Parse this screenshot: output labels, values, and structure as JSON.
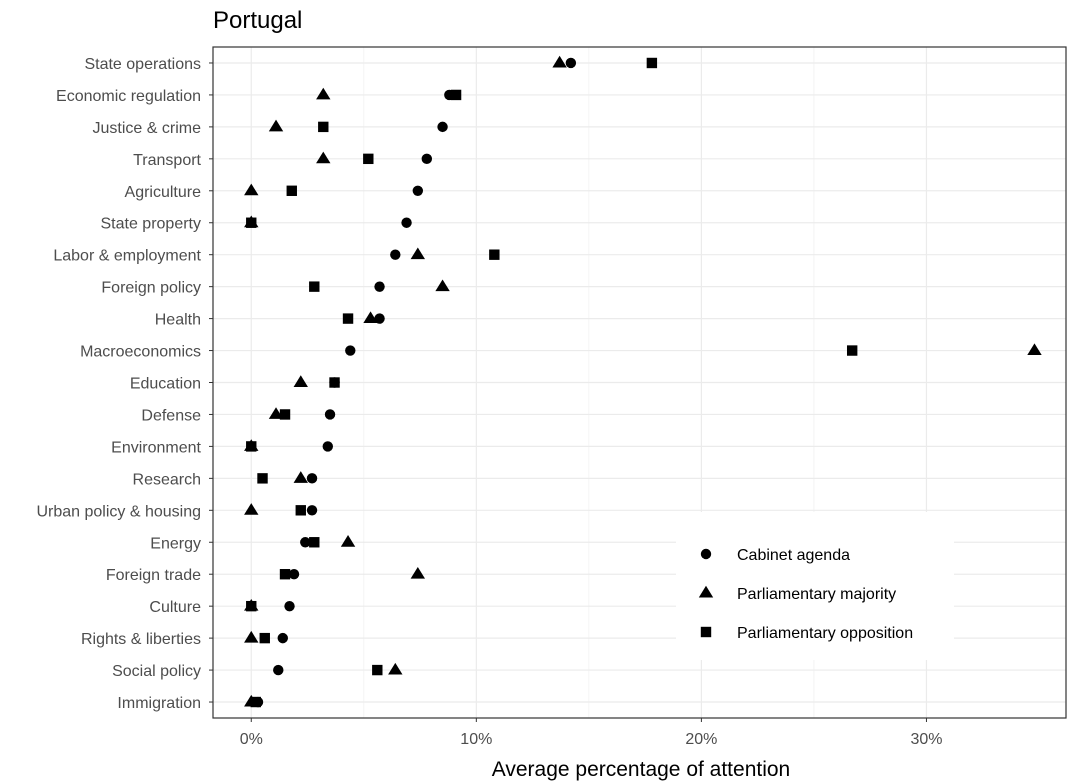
{
  "chart_data": {
    "type": "scatter",
    "title": "Portugal",
    "xlabel": "Average percentage of attention",
    "ylabel": "",
    "xlim": [
      -1.7,
      36.2
    ],
    "x_ticks": [
      0,
      10,
      20,
      30
    ],
    "x_tick_labels": [
      "0%",
      "10%",
      "20%",
      "30%"
    ],
    "grid": true,
    "legend_position": "bottom-right",
    "categories": [
      "State operations",
      "Economic regulation",
      "Justice & crime",
      "Transport",
      "Agriculture",
      "State property",
      "Labor & employment",
      "Foreign policy",
      "Health",
      "Macroeconomics",
      "Education",
      "Defense",
      "Environment",
      "Research",
      "Urban policy & housing",
      "Energy",
      "Foreign trade",
      "Culture",
      "Rights & liberties",
      "Social policy",
      "Immigration"
    ],
    "series": [
      {
        "name": "Cabinet agenda",
        "marker": "circle",
        "values": [
          14.2,
          8.8,
          8.5,
          7.8,
          7.4,
          6.9,
          6.4,
          5.7,
          5.7,
          4.4,
          3.7,
          3.5,
          3.4,
          2.7,
          2.7,
          2.4,
          1.9,
          1.7,
          1.4,
          1.2,
          0.3
        ]
      },
      {
        "name": "Parliamentary majority",
        "marker": "triangle",
        "values": [
          13.7,
          3.2,
          1.1,
          3.2,
          0.0,
          0.0,
          7.4,
          8.5,
          5.3,
          34.8,
          2.2,
          1.1,
          0.0,
          2.2,
          0.0,
          4.3,
          7.4,
          0.0,
          0.0,
          6.4,
          0.0
        ]
      },
      {
        "name": "Parliamentary opposition",
        "marker": "square",
        "values": [
          17.8,
          9.1,
          3.2,
          5.2,
          1.8,
          0.0,
          10.8,
          2.8,
          4.3,
          26.7,
          3.7,
          1.5,
          0.0,
          0.5,
          2.2,
          2.8,
          1.5,
          0.0,
          0.6,
          5.6,
          0.2
        ]
      }
    ]
  }
}
